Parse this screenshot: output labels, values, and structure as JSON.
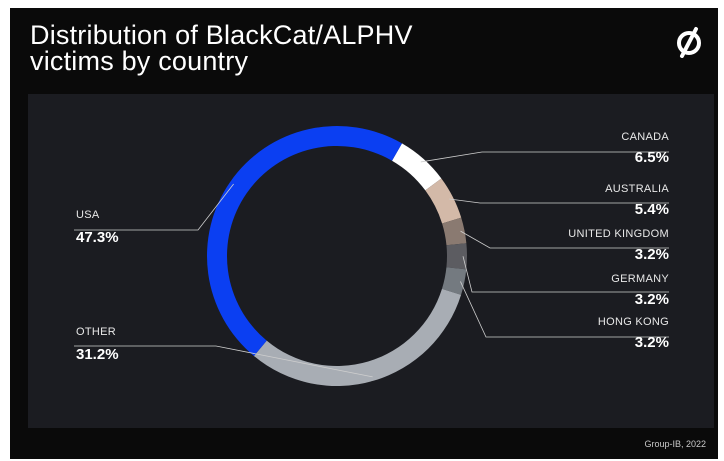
{
  "page": {
    "title_line1": "Distribution of BlackCat/ALPHV",
    "title_line2": "victims by country",
    "credit": "Group-IB, 2022"
  },
  "colors": {
    "background": "#0a0a0a",
    "panel": "#1b1c21",
    "usa": "#0b3ff2",
    "canada": "#ffffff",
    "australia": "#d3b9a8",
    "united_kingdom": "#8a7a71",
    "germany": "#5c5c61",
    "hong_kong": "#747a80",
    "other": "#a8adb4"
  },
  "chart_data": {
    "type": "pie",
    "donut": true,
    "title": "Distribution of BlackCat/ALPHV victims by country",
    "slices": [
      {
        "name": "CANADA",
        "value": 6.5,
        "label": "6.5%",
        "color": "#ffffff"
      },
      {
        "name": "AUSTRALIA",
        "value": 5.4,
        "label": "5.4%",
        "color": "#d3b9a8"
      },
      {
        "name": "UNITED KINGDOM",
        "value": 3.2,
        "label": "3.2%",
        "color": "#8a7a71"
      },
      {
        "name": "GERMANY",
        "value": 3.2,
        "label": "3.2%",
        "color": "#5c5c61"
      },
      {
        "name": "HONG KONG",
        "value": 3.2,
        "label": "3.2%",
        "color": "#747a80"
      },
      {
        "name": "OTHER",
        "value": 31.2,
        "label": "31.2%",
        "color": "#a8adb4"
      },
      {
        "name": "USA",
        "value": 47.3,
        "label": "47.3%",
        "color": "#0b3ff2"
      }
    ]
  }
}
